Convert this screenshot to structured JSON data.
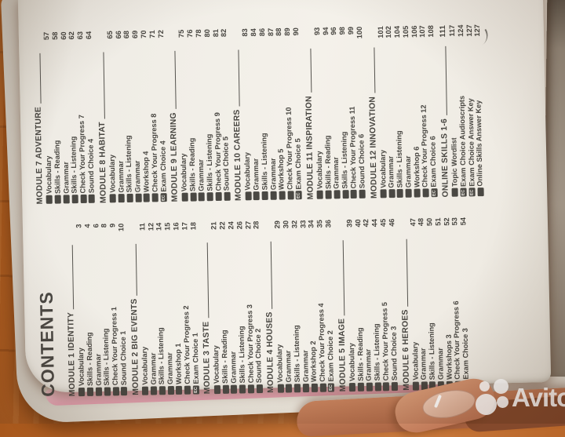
{
  "watermark": {
    "text": "Avito"
  },
  "icons": {
    "exam_choice": {
      "glyph": "EC"
    }
  },
  "colors": {
    "table_wood": "#bd6a2c",
    "page": "#f4f1ea",
    "ink": "#474540",
    "cover_pink": "#e9a5b6",
    "skin": "#c9845f",
    "watermark": "#ffffff"
  },
  "toc": {
    "title": "CONTENTS",
    "columns": [
      {
        "blocks": [
          {
            "heading": "MODULE 1 IDENTITY",
            "heading_page": "",
            "items": [
              {
                "label": "Vocabulary",
                "page": "3"
              },
              {
                "label": "Skills - Reading",
                "page": "4"
              },
              {
                "label": "Grammar",
                "page": "6"
              },
              {
                "label": "Skills - Listening",
                "page": "8"
              },
              {
                "label": "Check Your Progress 1",
                "page": "9"
              },
              {
                "label": "Sound Choice 1",
                "page": "10"
              }
            ]
          },
          {
            "heading": "MODULE 2 BIG EVENTS",
            "heading_page": "",
            "items": [
              {
                "label": "Vocabulary",
                "page": "11"
              },
              {
                "label": "Grammar",
                "page": "12"
              },
              {
                "label": "Skills - Listening",
                "page": "14"
              },
              {
                "label": "Grammar",
                "page": "15"
              },
              {
                "label": "Workshop 1",
                "page": "16"
              },
              {
                "label": "Check Your Progress 2",
                "page": "17"
              },
              {
                "label": "Exam Choice 1",
                "page": "18",
                "icon": true
              }
            ]
          },
          {
            "heading": "MODULE 3 TASTE",
            "heading_page": "",
            "items": [
              {
                "label": "Vocabulary",
                "page": "21"
              },
              {
                "label": "Skills - Reading",
                "page": "22"
              },
              {
                "label": "Grammar",
                "page": "24"
              },
              {
                "label": "Skills - Listening",
                "page": "26"
              },
              {
                "label": "Check Your Progress 3",
                "page": "27"
              },
              {
                "label": "Sound Choice 2",
                "page": "28"
              }
            ]
          },
          {
            "heading": "MODULE 4 HOUSES",
            "heading_page": "",
            "items": [
              {
                "label": "Vocabulary",
                "page": "29"
              },
              {
                "label": "Grammar",
                "page": "30"
              },
              {
                "label": "Skills - Listening",
                "page": "32"
              },
              {
                "label": "Grammar",
                "page": "33"
              },
              {
                "label": "Workshop 2",
                "page": "34"
              },
              {
                "label": "Check Your Progress 4",
                "page": "35"
              },
              {
                "label": "Exam Choice 2",
                "page": "36",
                "icon": true
              }
            ]
          },
          {
            "heading": "MODULE 5 IMAGE",
            "heading_page": "",
            "items": [
              {
                "label": "Vocabulary",
                "page": "39"
              },
              {
                "label": "Skills - Reading",
                "page": "40"
              },
              {
                "label": "Grammar",
                "page": "42"
              },
              {
                "label": "Skills - Listening",
                "page": "44"
              },
              {
                "label": "Check Your Progress 5",
                "page": "45"
              },
              {
                "label": "Sound Choice 3",
                "page": "46"
              }
            ]
          },
          {
            "heading": "MODULE 6 HEROES",
            "heading_page": "",
            "items": [
              {
                "label": "Vocabulary",
                "page": "47"
              },
              {
                "label": "Grammar",
                "page": "48"
              },
              {
                "label": "Skills - Listening",
                "page": "50"
              },
              {
                "label": "Grammar",
                "page": "51"
              },
              {
                "label": "Workshops 3",
                "page": "52"
              },
              {
                "label": "Check Your Progress 6",
                "page": "53"
              },
              {
                "label": "Exam Choice 3",
                "page": "54",
                "icon": true
              }
            ]
          }
        ]
      },
      {
        "blocks": [
          {
            "heading": "MODULE 7 ADVENTURE",
            "heading_page": "",
            "items": [
              {
                "label": "Vocabulary",
                "page": "57"
              },
              {
                "label": "Skills - Reading",
                "page": "58"
              },
              {
                "label": "Grammar",
                "page": "60"
              },
              {
                "label": "Skills - Listening",
                "page": "62"
              },
              {
                "label": "Check Your Progress 7",
                "page": "63"
              },
              {
                "label": "Sound Choice 4",
                "page": "64"
              }
            ]
          },
          {
            "heading": "MODULE 8 HABITAT",
            "heading_page": "",
            "items": [
              {
                "label": "Vocabulary",
                "page": "65"
              },
              {
                "label": "Grammar",
                "page": "66"
              },
              {
                "label": "Skills - Listening",
                "page": "68"
              },
              {
                "label": "Grammar",
                "page": "69"
              },
              {
                "label": "Workshop 4",
                "page": "70"
              },
              {
                "label": "Check Your Progress 8",
                "page": "71"
              },
              {
                "label": "Exam Choice 4",
                "page": "72",
                "icon": true
              }
            ]
          },
          {
            "heading": "MODULE 9 LEARNING",
            "heading_page": "",
            "items": [
              {
                "label": "Vocabulary",
                "page": "75"
              },
              {
                "label": "Skills - Reading",
                "page": "76"
              },
              {
                "label": "Grammar",
                "page": "78"
              },
              {
                "label": "Skills - Listening",
                "page": "80"
              },
              {
                "label": "Check Your Progress 9",
                "page": "81"
              },
              {
                "label": "Sound Choice 5",
                "page": "82"
              }
            ]
          },
          {
            "heading": "MODULE 10 CAREERS",
            "heading_page": "",
            "items": [
              {
                "label": "Vocabulary",
                "page": "83"
              },
              {
                "label": "Grammar",
                "page": "84"
              },
              {
                "label": "Skills - Listening",
                "page": "86"
              },
              {
                "label": "Grammar",
                "page": "87"
              },
              {
                "label": "Workshop 5",
                "page": "88"
              },
              {
                "label": "Check Your Progress 10",
                "page": "89"
              },
              {
                "label": "Exam Choice 5",
                "page": "90",
                "icon": true
              }
            ]
          },
          {
            "heading": "MODULE 11 INSPIRATION",
            "heading_page": "",
            "items": [
              {
                "label": "Vocabulary",
                "page": "93"
              },
              {
                "label": "Skills - Reading",
                "page": "94"
              },
              {
                "label": "Grammar",
                "page": "96"
              },
              {
                "label": "Skills - Listening",
                "page": "98"
              },
              {
                "label": "Check Your Progress 11",
                "page": "99"
              },
              {
                "label": "Sound Choice 6",
                "page": "100"
              }
            ]
          },
          {
            "heading": "MODULE 12 INNOVATION",
            "heading_page": "",
            "items": [
              {
                "label": "Vocabulary",
                "page": "101"
              },
              {
                "label": "Grammar",
                "page": "102"
              },
              {
                "label": "Skills - Listening",
                "page": "104"
              },
              {
                "label": "Grammar",
                "page": "105"
              },
              {
                "label": "Workshop 6",
                "page": "106"
              },
              {
                "label": "Check Your Progress 12",
                "page": "107"
              },
              {
                "label": "Exam Choice 6",
                "page": "108",
                "icon": true
              }
            ]
          },
          {
            "heading": "ONLINE SKILLS 1-6",
            "heading_page": "111",
            "items": [
              {
                "label": "Topic Wordlist",
                "page": "117"
              },
              {
                "label": "Exam Choice Audioscripts",
                "page": "124",
                "icon": true
              },
              {
                "label": "Exam Choice Answer Key",
                "page": "127",
                "icon": true
              },
              {
                "label": "Online Skills Answer Key",
                "page": "127"
              }
            ]
          }
        ]
      }
    ]
  }
}
